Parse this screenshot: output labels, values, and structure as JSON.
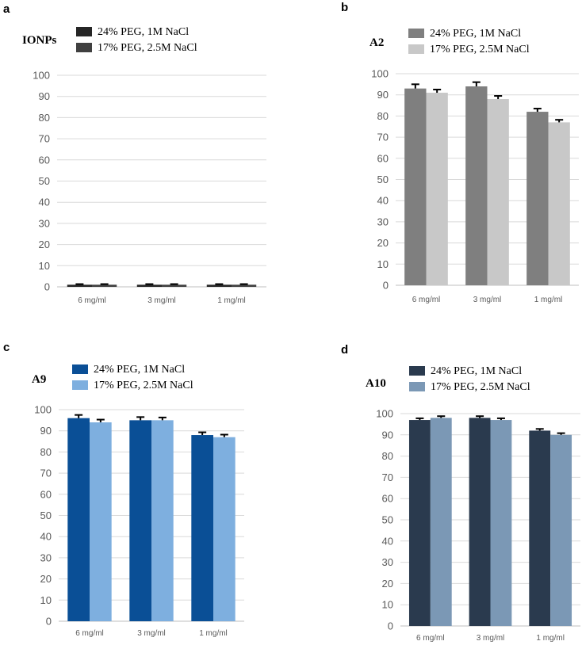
{
  "chart_data": [
    {
      "type": "bar",
      "panel": "a",
      "title": "IONPs",
      "categories": [
        "6 mg/ml",
        "3 mg/ml",
        "1 mg/ml"
      ],
      "ylim": [
        0,
        100
      ],
      "yticks": [
        0,
        10,
        20,
        30,
        40,
        50,
        60,
        70,
        80,
        90,
        100
      ],
      "grid": true,
      "legend": "top-left",
      "series": [
        {
          "name": "24% PEG, 1M NaCl",
          "values": [
            1,
            1,
            1
          ],
          "errors": [
            0.3,
            0.3,
            0.3
          ],
          "color": "#262626"
        },
        {
          "name": "17% PEG, 2.5M NaCl",
          "values": [
            1,
            1,
            1
          ],
          "errors": [
            0.3,
            0.3,
            0.3
          ],
          "color": "#404040"
        }
      ]
    },
    {
      "type": "bar",
      "panel": "b",
      "title": "A2",
      "categories": [
        "6 mg/ml",
        "3 mg/ml",
        "1 mg/ml"
      ],
      "ylim": [
        0,
        100
      ],
      "yticks": [
        0,
        10,
        20,
        30,
        40,
        50,
        60,
        70,
        80,
        90,
        100
      ],
      "grid": true,
      "legend": "top-left",
      "series": [
        {
          "name": "24% PEG, 1M NaCl",
          "values": [
            93,
            94,
            82
          ],
          "errors": [
            2,
            2,
            1.5
          ],
          "color": "#7f7f7f"
        },
        {
          "name": "17% PEG, 2.5M NaCl",
          "values": [
            91,
            88,
            77
          ],
          "errors": [
            1.5,
            1.5,
            1.2
          ],
          "color": "#c8c8c8"
        }
      ]
    },
    {
      "type": "bar",
      "panel": "c",
      "title": "A9",
      "categories": [
        "6 mg/ml",
        "3 mg/ml",
        "1 mg/ml"
      ],
      "ylim": [
        0,
        100
      ],
      "yticks": [
        0,
        10,
        20,
        30,
        40,
        50,
        60,
        70,
        80,
        90,
        100
      ],
      "grid": true,
      "legend": "top-left",
      "series": [
        {
          "name": "24% PEG, 1M NaCl",
          "values": [
            96,
            95,
            88
          ],
          "errors": [
            1.5,
            1.5,
            1.3
          ],
          "color": "#0a4f96"
        },
        {
          "name": "17% PEG, 2.5M NaCl",
          "values": [
            94,
            95,
            87
          ],
          "errors": [
            1.3,
            1.3,
            1.2
          ],
          "color": "#7eafdf"
        }
      ]
    },
    {
      "type": "bar",
      "panel": "d",
      "title": "A10",
      "categories": [
        "6 mg/ml",
        "3 mg/ml",
        "1 mg/ml"
      ],
      "ylim": [
        0,
        100
      ],
      "yticks": [
        0,
        10,
        20,
        30,
        40,
        50,
        60,
        70,
        80,
        90,
        100
      ],
      "grid": true,
      "legend": "top-left",
      "series": [
        {
          "name": "24% PEG, 1M NaCl",
          "values": [
            97,
            98,
            92
          ],
          "errors": [
            0.8,
            0.8,
            0.8
          ],
          "color": "#2a3a4e"
        },
        {
          "name": "17% PEG, 2.5M NaCl",
          "values": [
            98,
            97,
            90
          ],
          "errors": [
            0.8,
            0.8,
            0.8
          ],
          "color": "#7b98b5"
        }
      ]
    }
  ]
}
